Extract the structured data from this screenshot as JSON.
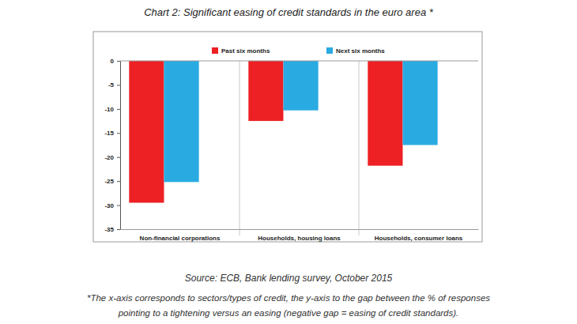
{
  "chart_data": {
    "type": "bar",
    "title": "Chart 2: Significant easing of credit standards in the euro area *",
    "categories": [
      "Non-financial corporations",
      "Households, housing loans",
      "Households, consumer loans"
    ],
    "series": [
      {
        "name": "Past six months",
        "color": "#ed2024",
        "values": [
          -29.5,
          -12.5,
          -21.8
        ]
      },
      {
        "name": "Next six months",
        "color": "#29abe2",
        "values": [
          -25.2,
          -10.3,
          -17.5
        ]
      }
    ],
    "ylim": [
      -35,
      0
    ],
    "yticks": [
      -35,
      -30,
      -25,
      -20,
      -15,
      -10,
      -5,
      0
    ],
    "grid": false,
    "legend": "top",
    "annotations": [
      "Source: ECB, Bank lending survey, October 2015",
      "*The x-axis corresponds to sectors/types of credit, the y-axis to the gap between the % of responses",
      "pointing to a tightening versus an easing (negative gap = easing of credit standards)."
    ]
  }
}
